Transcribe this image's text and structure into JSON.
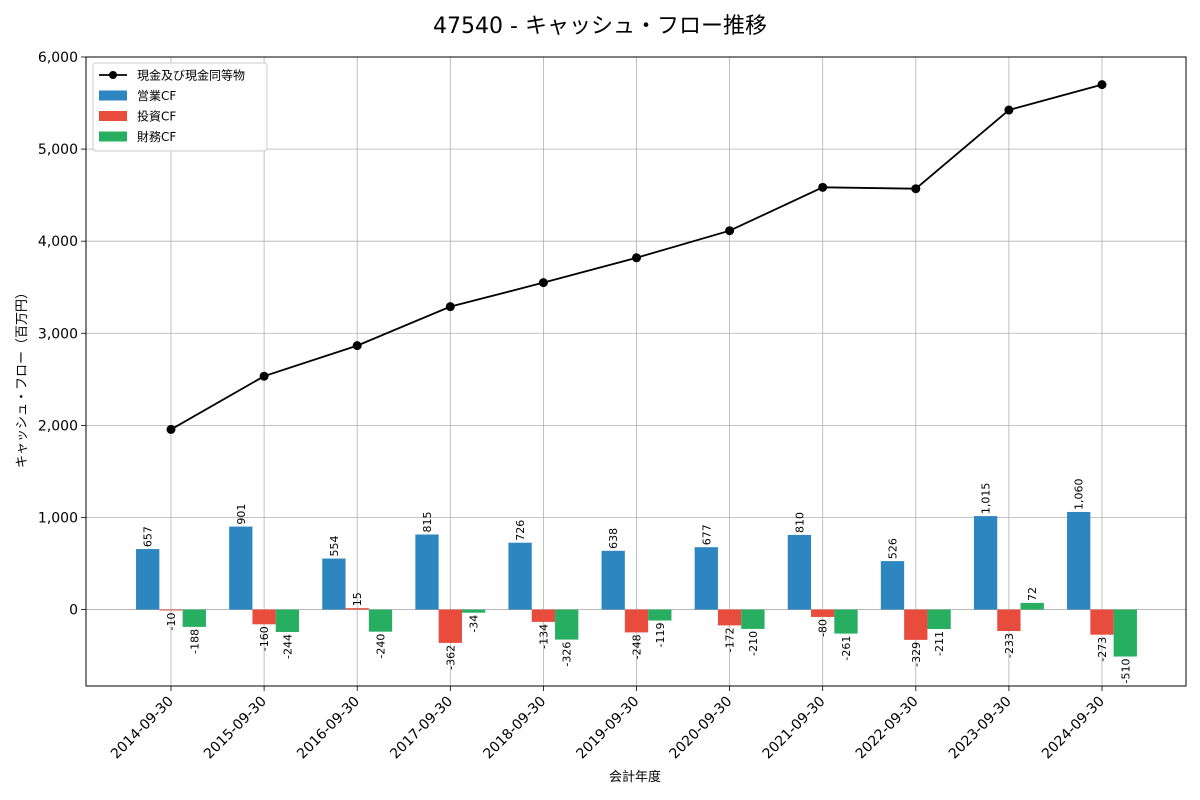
{
  "chart_data": {
    "type": "bar",
    "title": "47540 - キャッシュ・フロー推移",
    "xlabel": "会計年度",
    "ylabel": "キャッシュ・フロー（百万円）",
    "ylim": [
      -830,
      6000
    ],
    "yticks": [
      0,
      1000,
      2000,
      3000,
      4000,
      5000,
      6000
    ],
    "ytick_labels": [
      "0",
      "1,000",
      "2,000",
      "3,000",
      "4,000",
      "5,000",
      "6,000"
    ],
    "grid": true,
    "legend_position": "top-left",
    "categories": [
      "2014-09-30",
      "2015-09-30",
      "2016-09-30",
      "2017-09-30",
      "2018-09-30",
      "2019-09-30",
      "2020-09-30",
      "2021-09-30",
      "2022-09-30",
      "2023-09-30",
      "2024-09-30"
    ],
    "series": [
      {
        "name": "営業CF",
        "kind": "bar",
        "color": "#2e86c1",
        "values": [
          657,
          901,
          554,
          815,
          726,
          638,
          677,
          810,
          526,
          1015,
          1060
        ],
        "labels": [
          "657",
          "901",
          "554",
          "815",
          "726",
          "638",
          "677",
          "810",
          "526",
          "1,015",
          "1,060"
        ]
      },
      {
        "name": "投資CF",
        "kind": "bar",
        "color": "#e74c3c",
        "values": [
          -10,
          -160,
          15,
          -362,
          -134,
          -248,
          -172,
          -80,
          -329,
          -233,
          -273
        ],
        "labels": [
          "-10",
          "-160",
          "15",
          "-362",
          "-134",
          "-248",
          "-172",
          "-80",
          "-329",
          "-233",
          "-273"
        ]
      },
      {
        "name": "財務CF",
        "kind": "bar",
        "color": "#27ae60",
        "values": [
          -188,
          -244,
          -240,
          -34,
          -326,
          -119,
          -210,
          -261,
          -211,
          72,
          -510
        ],
        "labels": [
          "-188",
          "-244",
          "-240",
          "-34",
          "-326",
          "-119",
          "-210",
          "-261",
          "-211",
          "72",
          "-510"
        ]
      },
      {
        "name": "現金及び現金同等物",
        "kind": "line",
        "color": "#000000",
        "values": [
          1956,
          2534,
          2866,
          3289,
          3550,
          3820,
          4114,
          4585,
          4570,
          5424,
          5700
        ]
      }
    ]
  }
}
